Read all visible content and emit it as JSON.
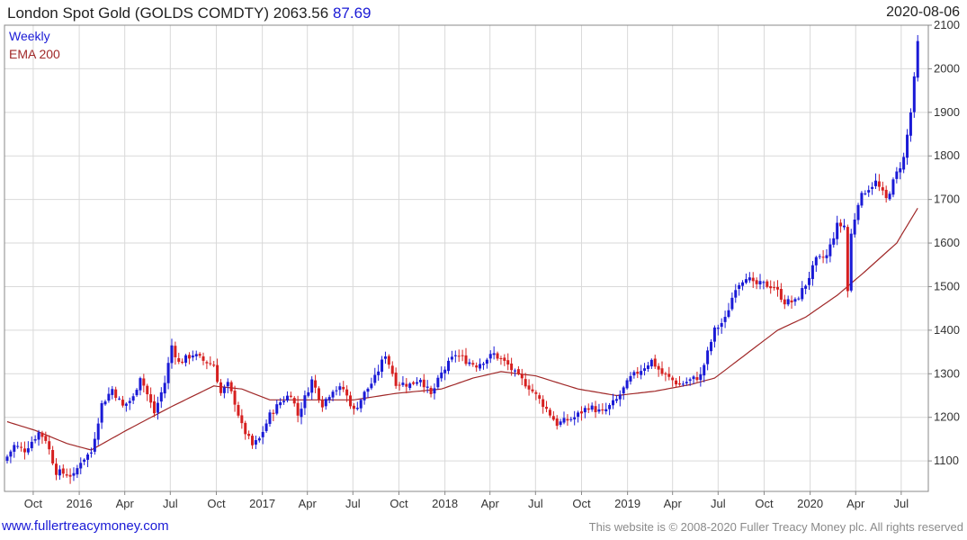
{
  "header": {
    "title": "London Spot Gold (GOLDS COMDTY)",
    "last_price": "2063.56",
    "change": "87.69",
    "date": "2020-08-06"
  },
  "footer": {
    "site_link": "www.fullertreacymoney.com",
    "copyright": "This website is © 2008-2020 Fuller Treacy Money plc. All rights reserved"
  },
  "colors": {
    "up": "#1a1ad6",
    "down": "#d62020",
    "ema": "#a02828",
    "grid": "#d9d9d9"
  },
  "chart_data": {
    "type": "candlestick",
    "frequency": "weekly",
    "legend": [
      "Weekly",
      "EMA 200"
    ],
    "x_tick_labels": [
      "Oct",
      "2016",
      "Apr",
      "Jul",
      "Oct",
      "2017",
      "Apr",
      "Jul",
      "Oct",
      "2018",
      "Apr",
      "Jul",
      "Oct",
      "2019",
      "Apr",
      "Jul",
      "Oct",
      "2020",
      "Apr",
      "Jul"
    ],
    "y_ticks": [
      1100,
      1200,
      1300,
      1400,
      1500,
      1600,
      1700,
      1800,
      1900,
      2000,
      2100
    ],
    "ylim": [
      1030,
      2100
    ],
    "x_start": "2015-08-10",
    "x_end": "2020-08-17",
    "weekly_close_anchors": [
      [
        "2015-08-10",
        1110
      ],
      [
        "2015-08-24",
        1135
      ],
      [
        "2015-09-14",
        1125
      ],
      [
        "2015-10-12",
        1165
      ],
      [
        "2015-10-26",
        1150
      ],
      [
        "2015-11-16",
        1075
      ],
      [
        "2015-12-07",
        1070
      ],
      [
        "2015-12-21",
        1065
      ],
      [
        "2016-01-04",
        1100
      ],
      [
        "2016-01-25",
        1120
      ],
      [
        "2016-02-15",
        1230
      ],
      [
        "2016-03-07",
        1265
      ],
      [
        "2016-03-28",
        1225
      ],
      [
        "2016-04-18",
        1245
      ],
      [
        "2016-05-02",
        1295
      ],
      [
        "2016-05-30",
        1210
      ],
      [
        "2016-06-20",
        1280
      ],
      [
        "2016-07-04",
        1365
      ],
      [
        "2016-07-18",
        1325
      ],
      [
        "2016-08-15",
        1345
      ],
      [
        "2016-09-05",
        1330
      ],
      [
        "2016-09-26",
        1320
      ],
      [
        "2016-10-10",
        1255
      ],
      [
        "2016-10-24",
        1275
      ],
      [
        "2016-11-07",
        1235
      ],
      [
        "2016-11-21",
        1180
      ],
      [
        "2016-12-12",
        1135
      ],
      [
        "2016-12-26",
        1150
      ],
      [
        "2017-01-16",
        1205
      ],
      [
        "2017-02-06",
        1235
      ],
      [
        "2017-02-27",
        1255
      ],
      [
        "2017-03-13",
        1205
      ],
      [
        "2017-04-10",
        1285
      ],
      [
        "2017-05-01",
        1230
      ],
      [
        "2017-05-22",
        1265
      ],
      [
        "2017-06-12",
        1265
      ],
      [
        "2017-07-03",
        1215
      ],
      [
        "2017-07-24",
        1255
      ],
      [
        "2017-08-14",
        1290
      ],
      [
        "2017-09-04",
        1345
      ],
      [
        "2017-09-25",
        1280
      ],
      [
        "2017-10-23",
        1275
      ],
      [
        "2017-11-13",
        1290
      ],
      [
        "2017-12-04",
        1250
      ],
      [
        "2017-12-25",
        1300
      ],
      [
        "2018-01-22",
        1345
      ],
      [
        "2018-02-12",
        1330
      ],
      [
        "2018-03-05",
        1320
      ],
      [
        "2018-04-09",
        1345
      ],
      [
        "2018-05-07",
        1320
      ],
      [
        "2018-05-21",
        1300
      ],
      [
        "2018-06-18",
        1270
      ],
      [
        "2018-07-16",
        1230
      ],
      [
        "2018-08-13",
        1185
      ],
      [
        "2018-09-17",
        1200
      ],
      [
        "2018-10-15",
        1225
      ],
      [
        "2018-11-12",
        1210
      ],
      [
        "2018-12-10",
        1240
      ],
      [
        "2019-01-07",
        1290
      ],
      [
        "2019-02-18",
        1330
      ],
      [
        "2019-03-11",
        1300
      ],
      [
        "2019-04-15",
        1275
      ],
      [
        "2019-05-06",
        1285
      ],
      [
        "2019-05-27",
        1295
      ],
      [
        "2019-06-24",
        1400
      ],
      [
        "2019-07-15",
        1425
      ],
      [
        "2019-08-05",
        1500
      ],
      [
        "2019-08-26",
        1525
      ],
      [
        "2019-09-09",
        1505
      ],
      [
        "2019-09-30",
        1505
      ],
      [
        "2019-10-21",
        1500
      ],
      [
        "2019-11-11",
        1465
      ],
      [
        "2019-12-02",
        1465
      ],
      [
        "2019-12-23",
        1505
      ],
      [
        "2020-01-13",
        1560
      ],
      [
        "2020-02-03",
        1570
      ],
      [
        "2020-02-24",
        1640
      ],
      [
        "2020-03-09",
        1640
      ],
      [
        "2020-03-16",
        1490
      ],
      [
        "2020-03-23",
        1620
      ],
      [
        "2020-04-06",
        1695
      ],
      [
        "2020-04-20",
        1720
      ],
      [
        "2020-05-11",
        1740
      ],
      [
        "2020-06-01",
        1700
      ],
      [
        "2020-06-22",
        1760
      ],
      [
        "2020-07-06",
        1795
      ],
      [
        "2020-07-20",
        1900
      ],
      [
        "2020-07-27",
        1975
      ],
      [
        "2020-08-03",
        2063.56
      ]
    ],
    "ema200_anchors": [
      [
        "2015-08-10",
        1190
      ],
      [
        "2015-10-05",
        1170
      ],
      [
        "2015-12-07",
        1140
      ],
      [
        "2016-01-25",
        1125
      ],
      [
        "2016-04-04",
        1170
      ],
      [
        "2016-07-04",
        1225
      ],
      [
        "2016-09-26",
        1272
      ],
      [
        "2016-11-21",
        1265
      ],
      [
        "2017-01-16",
        1240
      ],
      [
        "2017-04-10",
        1240
      ],
      [
        "2017-07-03",
        1240
      ],
      [
        "2017-09-25",
        1255
      ],
      [
        "2017-12-25",
        1265
      ],
      [
        "2018-02-26",
        1290
      ],
      [
        "2018-04-23",
        1305
      ],
      [
        "2018-07-02",
        1295
      ],
      [
        "2018-09-24",
        1265
      ],
      [
        "2018-12-10",
        1250
      ],
      [
        "2019-02-25",
        1260
      ],
      [
        "2019-05-06",
        1275
      ],
      [
        "2019-06-24",
        1290
      ],
      [
        "2019-08-26",
        1345
      ],
      [
        "2019-10-28",
        1400
      ],
      [
        "2019-12-23",
        1430
      ],
      [
        "2020-02-24",
        1480
      ],
      [
        "2020-04-20",
        1535
      ],
      [
        "2020-06-22",
        1600
      ],
      [
        "2020-08-03",
        1680
      ]
    ]
  }
}
